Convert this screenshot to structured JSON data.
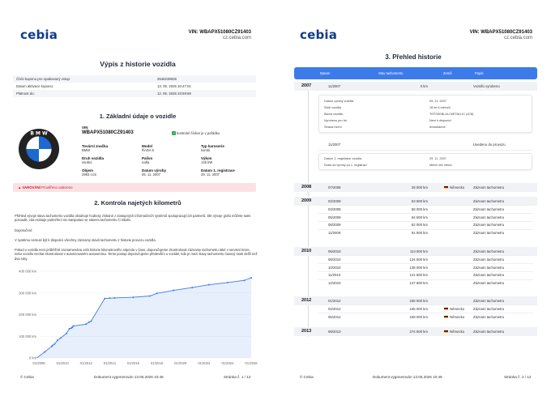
{
  "brand": {
    "logo": "cebia",
    "vin_line": "VIN: WBAPX51080CZ91403",
    "site": "cz.cebia.com"
  },
  "page1": {
    "title": "Výpis z historie vozidla",
    "info_rows": [
      {
        "label": "Číslo kuponu pro opakovaný vstup:",
        "value": "2546239026"
      },
      {
        "label": "Datum aktivace kuponu:",
        "value": "13. 05. 2026 10:47:01"
      },
      {
        "label": "Platnost do:",
        "value": "12. 06. 2026 23:59:59"
      }
    ],
    "section1_title": "1. Základní údaje o vozidle",
    "vin_label": "VIN",
    "vin_value": "WBAPX51080CZ91403",
    "vin_check": "kontrolní číslice je v pořádku",
    "fields": [
      {
        "label": "Tovární značka",
        "value": "BMW"
      },
      {
        "label": "Model",
        "value": "ŘADA 5"
      },
      {
        "label": "Typ karoserie",
        "value": "kombi"
      },
      {
        "label": "Druh vozidla",
        "value": "osobní"
      },
      {
        "label": "Palivo",
        "value": "nafta"
      },
      {
        "label": "Výkon",
        "value": "145 kW"
      },
      {
        "label": "Objem",
        "value": "2993 ccm"
      },
      {
        "label": "Datum výroby",
        "value": "05. 11. 2007"
      },
      {
        "label": "Datum 1. registrace",
        "value": "29. 11. 2007"
      }
    ],
    "alert_label": "VAROVÁNÍ",
    "alert_text": "Prověřeno nalezeno",
    "section2_title": "2. Kontrola najetých kilometrů",
    "para1": "Přehled vývoje stavu tachometru vozidla obsahuje hodnoty získané z dostupných informačních systémů spolupracujících partnerů. Dle vývoje grafu můžete sami posoudit, zda existuje podezření na manipulaci se stavem tachometru či nikoliv.",
    "para2_title": "Doporučení:",
    "para2": "V systému nemusí být k dispozici všechny záznamy stavů tachometru z historie provozu vozidla.",
    "para3": "Pokud u vozidla není průběžně zaznamenána celá historie kilometrového nájezdu v čase, doporučujeme zkontrolovat záznamy tachometru také v servisní knize, nebo vozidlo nechat zkontrolovat v autorizovaném autoservisu. Tento postup doporučujeme především u vozidel, kde je mezi stavy tachometru časový úsek delší než dva roky.",
    "footer_left": "© Cebia",
    "footer_mid": "Dokument vygenerován 13.05.2026 10:49",
    "footer_right": "Stránka č. 1 / 12"
  },
  "chart_data": {
    "type": "area",
    "x": [
      "07/2008",
      "02/2009",
      "03/2009",
      "05/2009",
      "08/2009",
      "11/2009",
      "05/2010",
      "08/2010",
      "10/2010",
      "11/2010",
      "12/2010",
      "01/2012",
      "04/2012",
      "06/2012",
      "08/2013",
      "01/2014",
      "06/2014",
      "01/2016",
      "06/2017",
      "01/2018",
      "06/2019",
      "01/2021",
      "06/2022",
      "01/2024",
      "06/2025",
      "01/2026"
    ],
    "values": [
      28000,
      53500,
      58000,
      64500,
      82000,
      91500,
      113000,
      134500,
      138000,
      141500,
      147500,
      156000,
      165000,
      169000,
      274500,
      276000,
      277000,
      280000,
      286000,
      298000,
      312000,
      325000,
      338000,
      348000,
      358000,
      370000
    ],
    "xticks": [
      "01/2008",
      "01/2010",
      "01/2012",
      "01/2014",
      "01/2016",
      "01/2018",
      "01/2020",
      "01/2022",
      "01/2024",
      "01/2026"
    ],
    "yticks": [
      "0 km",
      "100 000 km",
      "200 000 km",
      "300 000 km",
      "400 000 km"
    ],
    "ylim": [
      0,
      400000
    ],
    "color": "#3d7bea"
  },
  "page2": {
    "title": "3. Přehled historie",
    "headers": [
      "Datum",
      "Stav tachometru",
      "Země",
      "Popis"
    ],
    "years": [
      {
        "year": "2007",
        "rows": [
          {
            "date": "11/2007",
            "km": "0 km",
            "country": "",
            "desc": "Vozidlo vyrobeno"
          }
        ]
      },
      {
        "year": "2008",
        "rows": [
          {
            "date": "07/2008",
            "km": "28 000 km",
            "country": "Německo",
            "desc": "Záznam tachometru"
          }
        ]
      },
      {
        "year": "2009",
        "rows": [
          {
            "date": "02/2009",
            "km": "53 500 km",
            "country": "",
            "desc": "Záznam tachometru"
          },
          {
            "date": "03/2009",
            "km": "58 000 km",
            "country": "",
            "desc": "Záznam tachometru"
          },
          {
            "date": "05/2009",
            "km": "64 500 km",
            "country": "",
            "desc": "Záznam tachometru"
          },
          {
            "date": "08/2009",
            "km": "82 000 km",
            "country": "",
            "desc": "Záznam tachometru"
          },
          {
            "date": "11/2009",
            "km": "91 500 km",
            "country": "",
            "desc": "Záznam tachometru"
          }
        ]
      },
      {
        "year": "2010",
        "rows": [
          {
            "date": "05/2010",
            "km": "113 000 km",
            "country": "",
            "desc": "Záznam tachometru"
          },
          {
            "date": "08/2010",
            "km": "134 500 km",
            "country": "",
            "desc": "Záznam tachometru"
          },
          {
            "date": "10/2010",
            "km": "138 000 km",
            "country": "",
            "desc": "Záznam tachometru"
          },
          {
            "date": "11/2010",
            "km": "141 500 km",
            "country": "",
            "desc": "Záznam tachometru"
          },
          {
            "date": "12/2010",
            "km": "147 500 km",
            "country": "",
            "desc": "Záznam tachometru"
          }
        ]
      },
      {
        "year": "2012",
        "rows": [
          {
            "date": "01/2012",
            "km": "156 000 km",
            "country": "",
            "desc": "Záznam tachometru"
          },
          {
            "date": "04/2012",
            "km": "165 000 km",
            "country": "Německo",
            "desc": "Záznam tachometru"
          },
          {
            "date": "06/2012",
            "km": "169 000 km",
            "country": "Německo",
            "desc": "Záznam tachometru"
          }
        ]
      },
      {
        "year": "2013",
        "rows": [
          {
            "date": "08/2013",
            "km": "274 500 km",
            "country": "Německo",
            "desc": "Záznam tachometru"
          }
        ]
      }
    ],
    "detail1": [
      {
        "k": "Datum výroby vozidla",
        "v": "05. 11. 2007"
      },
      {
        "k": "Stáří vozidla",
        "v": "18 let 6 měsíců"
      },
      {
        "k": "Barva vozidla",
        "v": "TEFSEEBLAU METALLIC (A78)"
      },
      {
        "k": "Vyrobeno pro trh",
        "v": "Není k dispozici"
      },
      {
        "k": "Strana řízení",
        "v": "levostranné"
      }
    ],
    "row_2007b": {
      "date": "11/2007",
      "desc": "Uvedeno do provozu"
    },
    "detail2": [
      {
        "k": "Datum 1. registrace vozidla",
        "v": "29. 11. 2007"
      },
      {
        "k": "Doba od výroby po 1. registraci",
        "v": "Méně než měsíc"
      }
    ],
    "footer_left": "© Cebia",
    "footer_mid": "Dokument vygenerován 13.05.2026 10:49",
    "footer_right": "Stránka č. 2 / 12"
  }
}
